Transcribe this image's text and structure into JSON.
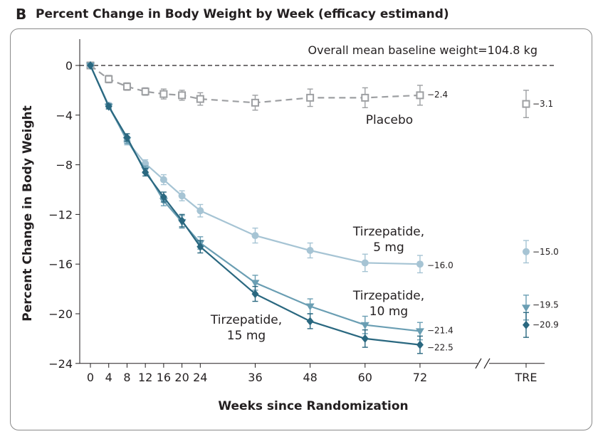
{
  "panel": {
    "letter": "B",
    "title": "Percent Change in Body Weight by Week (efficacy estimand)"
  },
  "chart_data": {
    "type": "line",
    "ylabel": "Percent Change in Body Weight",
    "xlabel": "Weeks since Randomization",
    "ylim": [
      -24,
      0
    ],
    "yticks": [
      0,
      -4,
      -8,
      -12,
      -16,
      -20,
      -24
    ],
    "xticks": [
      0,
      4,
      8,
      12,
      16,
      20,
      24,
      36,
      48,
      60,
      72
    ],
    "extra_x_label": "TRE",
    "reference_line": 0,
    "annotation": "Overall mean baseline weight=104.8 kg",
    "series": [
      {
        "label_lines": [
          "Placebo"
        ],
        "color": "#9d9fa2",
        "marker": "open-square",
        "dashed": true,
        "x": [
          0,
          4,
          8,
          12,
          16,
          20,
          24,
          36,
          48,
          60,
          72
        ],
        "values": [
          0,
          -1.1,
          -1.7,
          -2.1,
          -2.3,
          -2.4,
          -2.7,
          -3.0,
          -2.6,
          -2.6,
          -2.4
        ],
        "err": [
          0,
          0.3,
          0.3,
          0.3,
          0.4,
          0.4,
          0.5,
          0.6,
          0.7,
          0.8,
          0.8
        ],
        "end_label": "−2.4",
        "tre_value": -3.1,
        "tre_err": 1.1,
        "tre_label": "−3.1"
      },
      {
        "label_lines": [
          "Tirzepatide,",
          "5 mg"
        ],
        "color": "#a6c4d4",
        "marker": "circle",
        "dashed": false,
        "x": [
          0,
          4,
          8,
          12,
          16,
          20,
          24,
          36,
          48,
          60,
          72
        ],
        "values": [
          0,
          -3.2,
          -6.1,
          -7.9,
          -9.2,
          -10.5,
          -11.7,
          -13.7,
          -14.9,
          -15.9,
          -16.0
        ],
        "err": [
          0,
          0.2,
          0.3,
          0.3,
          0.4,
          0.4,
          0.5,
          0.6,
          0.6,
          0.7,
          0.7
        ],
        "end_label": "−16.0",
        "tre_value": -15.0,
        "tre_err": 0.9,
        "tre_label": "−15.0"
      },
      {
        "label_lines": [
          "Tirzepatide,",
          "10 mg"
        ],
        "color": "#6a9eb3",
        "marker": "triangle-down",
        "dashed": false,
        "x": [
          0,
          4,
          8,
          12,
          16,
          20,
          24,
          36,
          48,
          60,
          72
        ],
        "values": [
          0,
          -3.3,
          -6.0,
          -8.4,
          -10.9,
          -12.6,
          -14.3,
          -17.5,
          -19.4,
          -20.9,
          -21.4
        ],
        "err": [
          0,
          0.2,
          0.3,
          0.3,
          0.4,
          0.5,
          0.5,
          0.6,
          0.6,
          0.7,
          0.7
        ],
        "end_label": "−21.4",
        "tre_value": -19.5,
        "tre_err": 1.0,
        "tre_label": "−19.5"
      },
      {
        "label_lines": [
          "Tirzepatide,",
          "15 mg"
        ],
        "color": "#2a6880",
        "marker": "diamond",
        "dashed": false,
        "x": [
          0,
          4,
          8,
          12,
          16,
          20,
          24,
          36,
          48,
          60,
          72
        ],
        "values": [
          0,
          -3.3,
          -5.8,
          -8.6,
          -10.6,
          -12.5,
          -14.6,
          -18.4,
          -20.6,
          -22.0,
          -22.5
        ],
        "err": [
          0,
          0.2,
          0.3,
          0.3,
          0.4,
          0.5,
          0.5,
          0.6,
          0.6,
          0.7,
          0.7
        ],
        "end_label": "−22.5",
        "tre_value": -20.9,
        "tre_err": 1.0,
        "tre_label": "−20.9"
      }
    ]
  }
}
